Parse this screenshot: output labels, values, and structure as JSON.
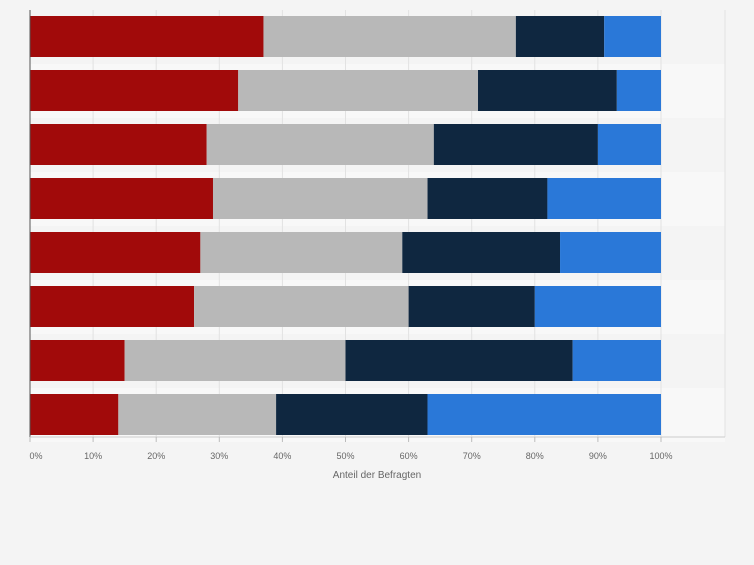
{
  "chart_data": {
    "type": "bar",
    "orientation": "horizontal",
    "stacked": true,
    "categories": [
      "",
      "",
      "",
      "",
      "",
      "",
      "",
      ""
    ],
    "series": [
      {
        "color": "#a10a0a",
        "values": [
          37,
          33,
          28,
          29,
          27,
          26,
          15,
          14
        ]
      },
      {
        "color": "#b8b8b8",
        "values": [
          40,
          38,
          36,
          34,
          32,
          34,
          35,
          25
        ]
      },
      {
        "color": "#0f2740",
        "values": [
          14,
          22,
          26,
          19,
          25,
          20,
          36,
          24
        ]
      },
      {
        "color": "#2a78d8",
        "values": [
          9,
          7,
          10,
          18,
          16,
          20,
          14,
          37
        ]
      }
    ],
    "xlabel": "Anteil der Befragten",
    "xlim": [
      0,
      100
    ],
    "xticks": [
      0,
      10,
      20,
      30,
      40,
      50,
      60,
      70,
      80,
      90,
      100
    ],
    "xtick_labels": [
      "0%",
      "10%",
      "20%",
      "30%",
      "40%",
      "50%",
      "60%",
      "70%",
      "80%",
      "90%",
      "100%"
    ],
    "grid": true,
    "legend": "none"
  },
  "colors": {
    "background": "#f4f4f4",
    "plot_band": "#f8f8f8",
    "gridline": "#e2e2e2",
    "axis": "#555555",
    "tick_text": "#666666"
  }
}
